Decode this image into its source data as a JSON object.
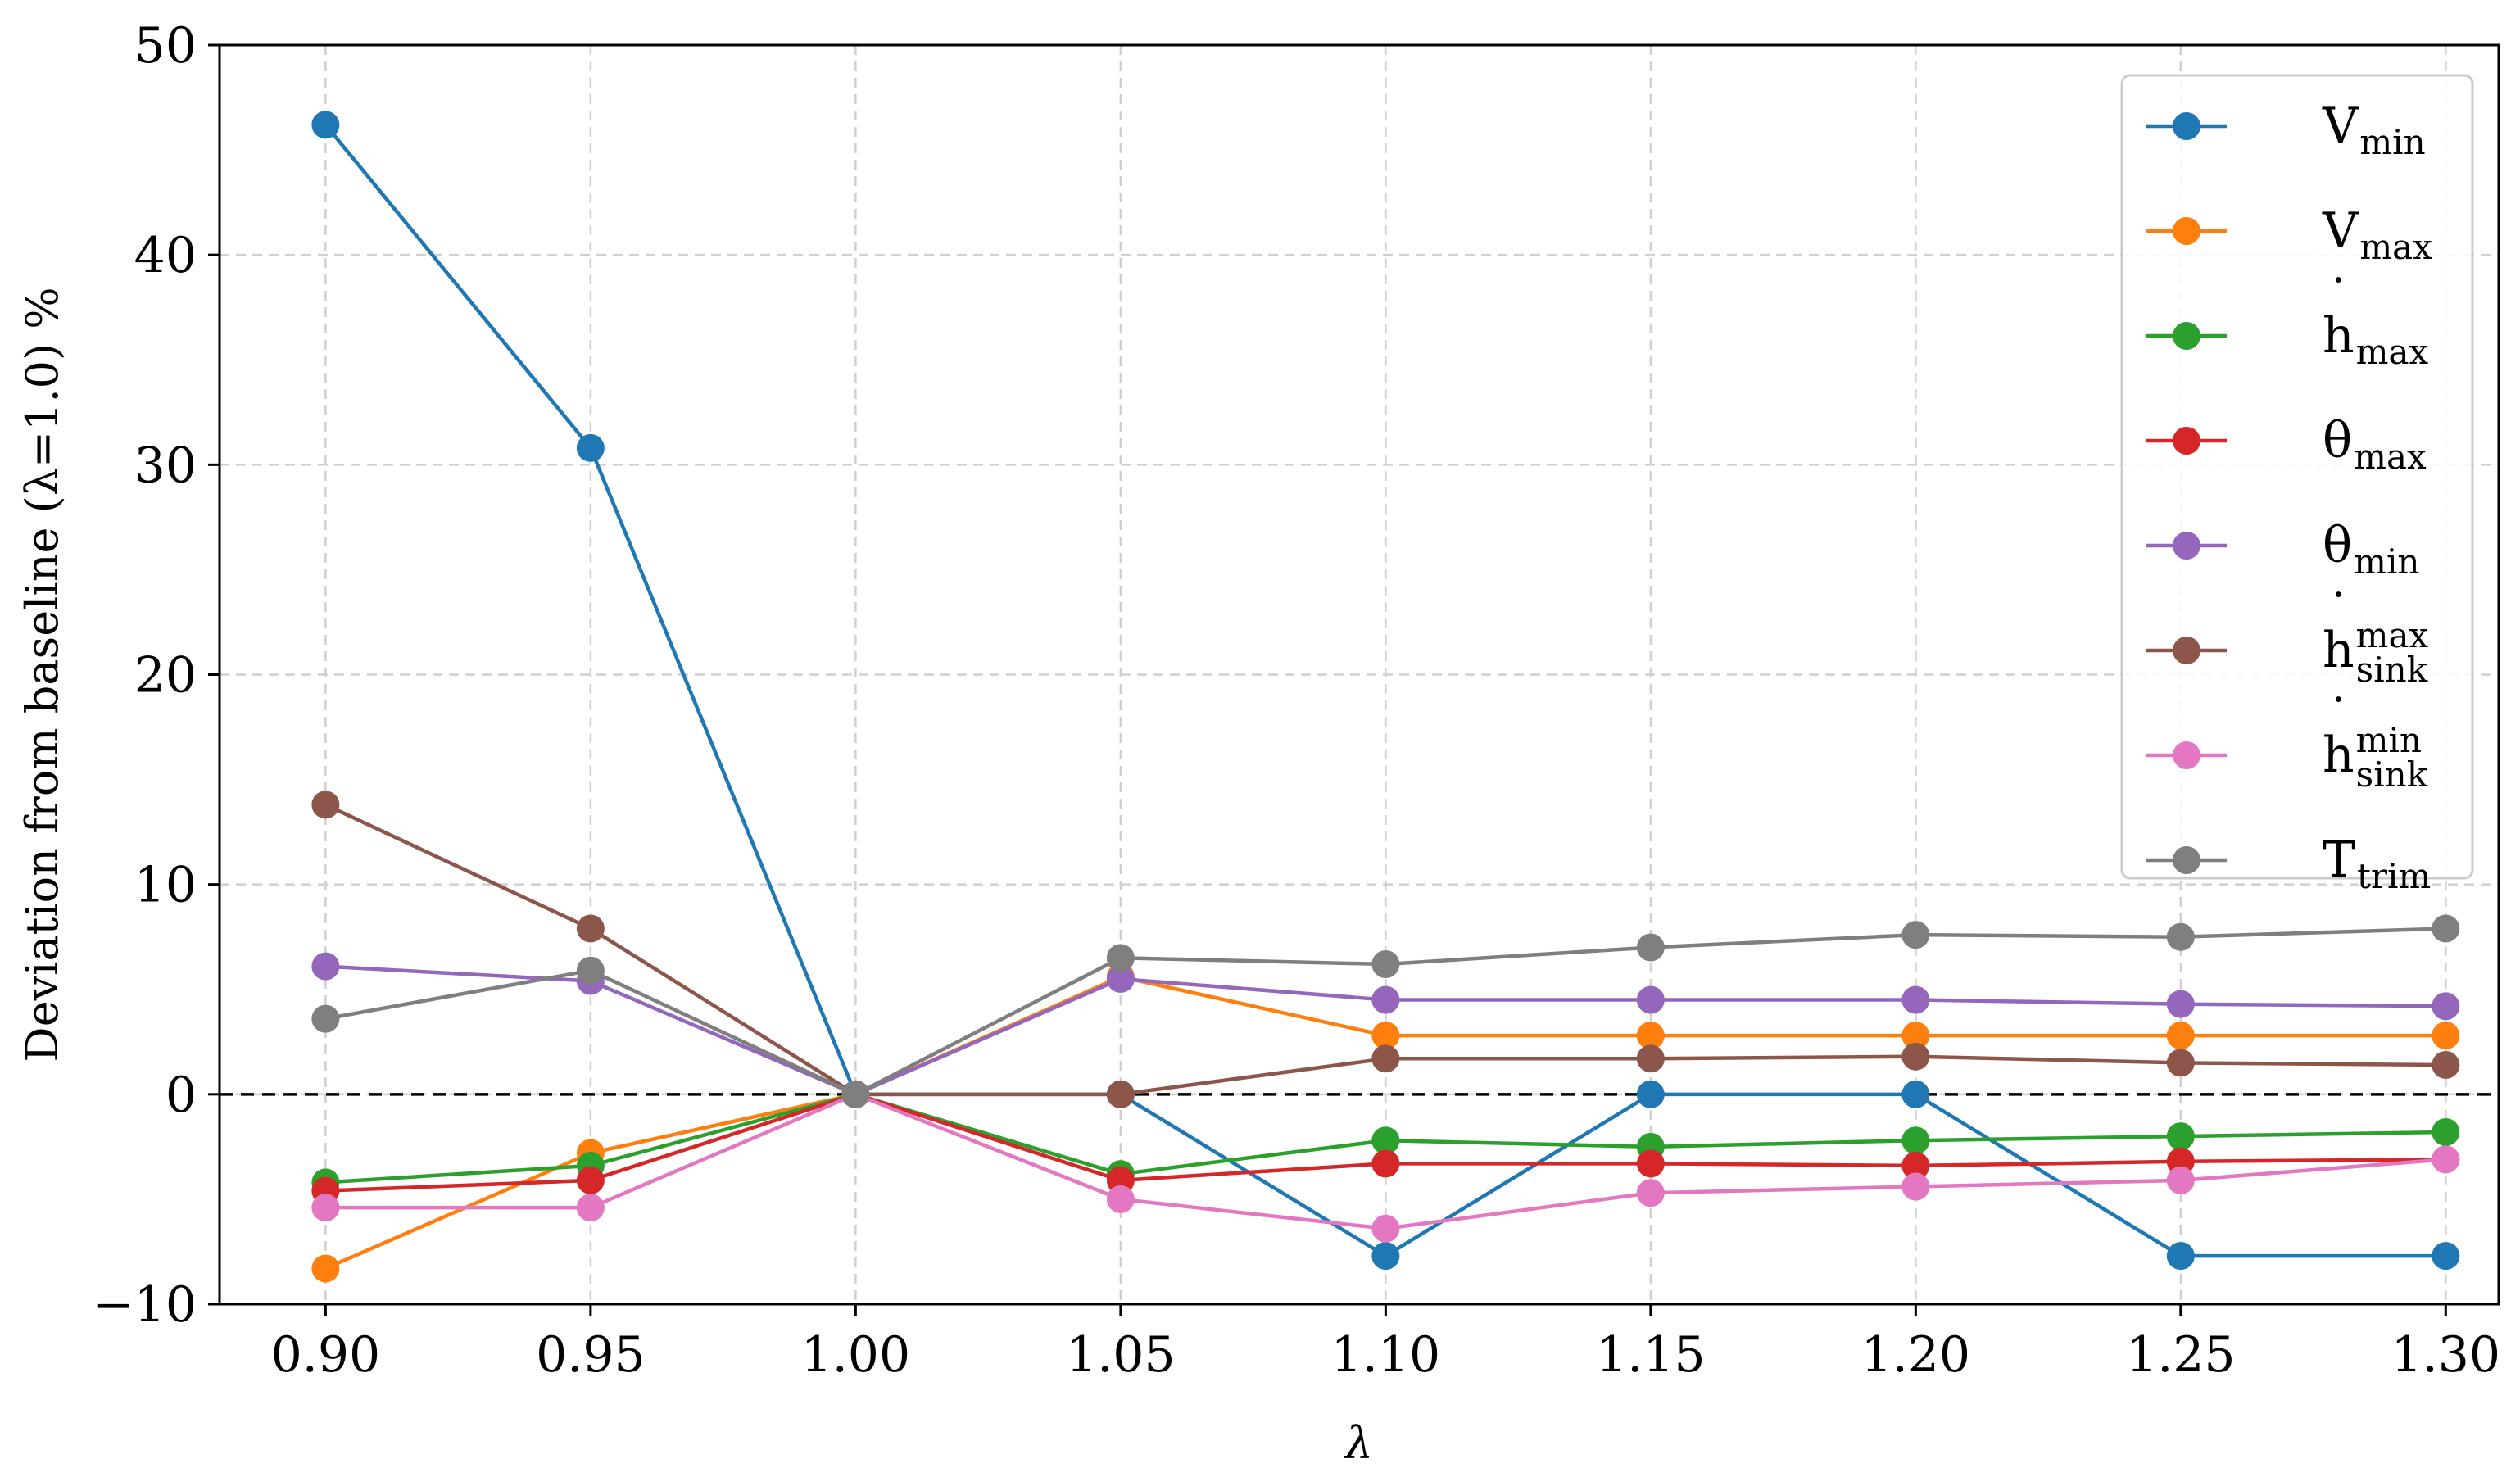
{
  "chart_data": {
    "type": "line",
    "xlabel": "λ",
    "ylabel": "Deviation from baseline (λ=1.0) %",
    "x": [
      0.9,
      0.95,
      1.0,
      1.05,
      1.1,
      1.15,
      1.2,
      1.25,
      1.3
    ],
    "x_tick_labels": [
      "0.90",
      "0.95",
      "1.00",
      "1.05",
      "1.10",
      "1.15",
      "1.20",
      "1.25",
      "1.30"
    ],
    "y_ticks": [
      -10,
      0,
      10,
      20,
      30,
      40,
      50
    ],
    "y_tick_labels": [
      "−10",
      "0",
      "10",
      "20",
      "30",
      "40",
      "50"
    ],
    "xlim": [
      0.88,
      1.31
    ],
    "ylim": [
      -10,
      50
    ],
    "grid": true,
    "reference_line": {
      "y": 0,
      "style": "dashed",
      "color": "#000000"
    },
    "legend_position": "top-right",
    "series": [
      {
        "name": "V",
        "sub": "min",
        "dot": false,
        "color": "#1f77b4",
        "values": [
          46.2,
          30.8,
          0,
          0,
          -7.7,
          0,
          0,
          -7.7,
          -7.7
        ]
      },
      {
        "name": "V",
        "sub": "max",
        "dot": false,
        "color": "#ff7f0e",
        "values": [
          -8.3,
          -2.8,
          0,
          5.6,
          2.8,
          2.8,
          2.8,
          2.8,
          2.8
        ]
      },
      {
        "name": "h",
        "sub": "max",
        "dot": true,
        "color": "#2ca02c",
        "values": [
          -4.2,
          -3.4,
          0,
          -3.8,
          -2.2,
          -2.5,
          -2.2,
          -2.0,
          -1.8
        ]
      },
      {
        "name": "θ",
        "sub": "max",
        "dot": false,
        "color": "#d62728",
        "values": [
          -4.6,
          -4.1,
          0,
          -4.1,
          -3.3,
          -3.3,
          -3.4,
          -3.2,
          -3.1
        ]
      },
      {
        "name": "θ",
        "sub": "min",
        "dot": false,
        "color": "#9467bd",
        "values": [
          6.1,
          5.4,
          0,
          5.5,
          4.5,
          4.5,
          4.5,
          4.3,
          4.2
        ]
      },
      {
        "name": "h",
        "sub": "sink",
        "sup": "max",
        "dot": true,
        "color": "#8c564b",
        "values": [
          13.8,
          7.9,
          0,
          0,
          1.7,
          1.7,
          1.8,
          1.5,
          1.4
        ]
      },
      {
        "name": "h",
        "sub": "sink",
        "sup": "min",
        "dot": true,
        "color": "#e377c2",
        "values": [
          -5.4,
          -5.4,
          0,
          -5.0,
          -6.4,
          -4.7,
          -4.4,
          -4.1,
          -3.1
        ]
      },
      {
        "name": "T",
        "sub": "trim",
        "dot": false,
        "color": "#7f7f7f",
        "values": [
          3.6,
          5.9,
          0,
          6.5,
          6.2,
          7.0,
          7.6,
          7.5,
          7.9
        ]
      }
    ]
  }
}
